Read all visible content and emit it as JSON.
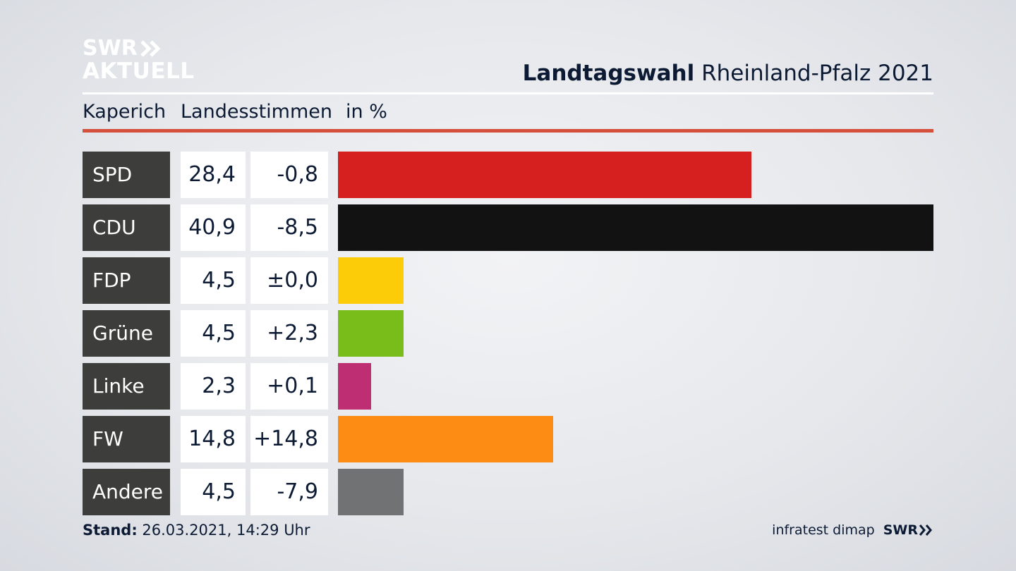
{
  "logo": {
    "line1": "SWR",
    "line2": "AKTUELL"
  },
  "headline": {
    "bold": "Landtagswahl",
    "regular": "Rheinland-Pfalz 2021"
  },
  "subheader": {
    "location": "Kaperich",
    "measure": "Landesstimmen",
    "unit": "in %"
  },
  "chart_data": {
    "type": "bar",
    "orientation": "horizontal",
    "title": "Landtagswahl Rheinland-Pfalz 2021",
    "subtitle": "Kaperich  Landesstimmen  in %",
    "categories": [
      "SPD",
      "CDU",
      "FDP",
      "Grüne",
      "Linke",
      "FW",
      "Andere"
    ],
    "series": [
      {
        "values": [
          28.4,
          40.9,
          4.5,
          4.5,
          2.3,
          14.8,
          4.5
        ]
      }
    ],
    "value_labels": [
      "28,4",
      "40,9",
      "4,5",
      "4,5",
      "2,3",
      "14,8",
      "4,5"
    ],
    "change_labels": [
      "-0,8",
      "-8,5",
      "±0,0",
      "+2,3",
      "+0,1",
      "+14,8",
      "-7,9"
    ],
    "changes": [
      -0.8,
      -8.5,
      0.0,
      2.3,
      0.1,
      14.8,
      -7.9
    ],
    "colors": [
      "#d61f1f",
      "#121212",
      "#fccc08",
      "#79bd1a",
      "#bd2e73",
      "#fc8c14",
      "#717274"
    ],
    "xlim": [
      0,
      40.9
    ],
    "grid": false,
    "legend": "none"
  },
  "footer": {
    "stand_label": "Stand:",
    "stand_value": "26.03.2021, 14:29 Uhr",
    "source": "infratest dimap",
    "brand": "SWR"
  }
}
